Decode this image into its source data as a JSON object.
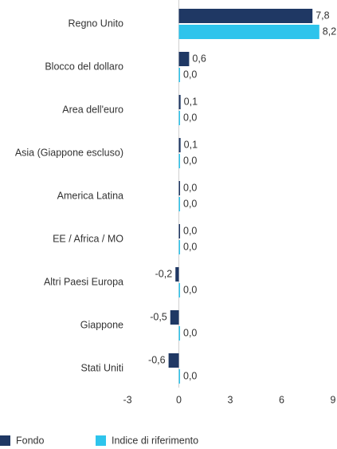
{
  "chart_data": {
    "type": "bar",
    "orientation": "horizontal",
    "categories": [
      "Regno Unito",
      "Blocco del dollaro",
      "Area dell'euro",
      "Asia (Giappone escluso)",
      "America Latina",
      "EE / Africa / MO",
      "Altri Paesi Europa",
      "Giappone",
      "Stati Uniti"
    ],
    "series": [
      {
        "name": "Fondo",
        "color": "#1f3864",
        "values": [
          7.8,
          0.6,
          0.1,
          0.1,
          0,
          0,
          -0.2,
          -0.5,
          -0.6
        ],
        "value_labels": [
          "7,8",
          "0,6",
          "0,1",
          "0,1",
          "0,0",
          "0,0",
          "-0,2",
          "-0,5",
          "-0,6"
        ]
      },
      {
        "name": "Indice di riferimento",
        "color": "#2ec4ec",
        "values": [
          8.2,
          0,
          0,
          0,
          0,
          0,
          0,
          0,
          0
        ],
        "value_labels": [
          "8,2",
          "0,0",
          "0,0",
          "0,0",
          "0,0",
          "0,0",
          "0,0",
          "0,0",
          "0,0"
        ]
      }
    ],
    "xlim": [
      -3,
      9
    ],
    "xticks": [
      -3,
      0,
      3,
      6,
      9
    ]
  }
}
